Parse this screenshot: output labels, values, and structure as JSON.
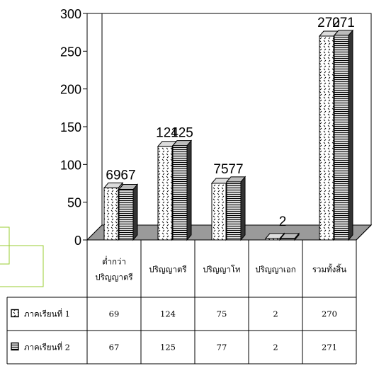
{
  "chart_data": {
    "type": "bar",
    "three_d": true,
    "categories": [
      [
        "ต่ำกว่า",
        "ปริญญาตรี"
      ],
      [
        "ปริญญาตรี"
      ],
      [
        "ปริญญาโท"
      ],
      [
        "ปริญญาเอก"
      ],
      [
        "รวมทั้งสิ้น"
      ]
    ],
    "series": [
      {
        "name": "ภาคเรียนที่ 1",
        "values": [
          69,
          124,
          75,
          2,
          270
        ],
        "pattern": "dots"
      },
      {
        "name": "ภาคเรียนที่ 2",
        "values": [
          67,
          125,
          77,
          2,
          271
        ],
        "pattern": "hlines"
      }
    ],
    "data_labels": [
      [
        "69",
        "67"
      ],
      [
        "124",
        "125"
      ],
      [
        "75",
        "77"
      ],
      [
        "2"
      ],
      [
        "270",
        "271"
      ]
    ],
    "yticks": [
      "0",
      "50",
      "100",
      "150",
      "200",
      "250",
      "300"
    ],
    "ylim": [
      0,
      300
    ],
    "legend": "data-table",
    "data_table": true,
    "grid": false,
    "colors": {
      "background": "#ffffff",
      "bar_face": "#ffffff",
      "bar_stroke": "#000000",
      "series2_side": "#333333",
      "overlay_box": "#9acd32"
    }
  }
}
